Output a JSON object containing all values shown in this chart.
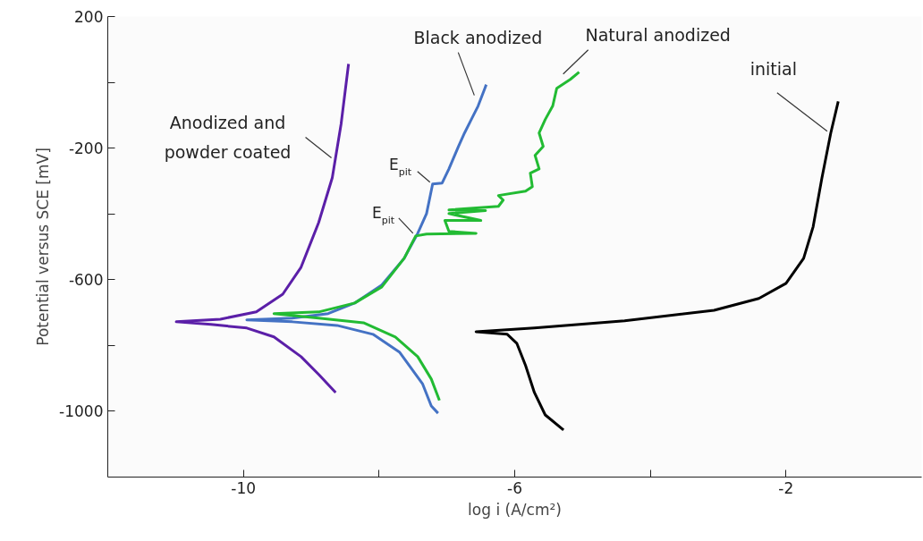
{
  "chart_data": {
    "type": "line",
    "xlabel": "log i (A/cm²)",
    "ylabel": "Potential versus SCE [mV]",
    "xlim": [
      -12,
      0
    ],
    "ylim": [
      -1200,
      200
    ],
    "xticks": [
      -10,
      {
        "value": -8,
        "label": null
      },
      -6,
      {
        "value": -4,
        "label": null
      },
      -2
    ],
    "yticks": [
      200,
      {
        "value": 0,
        "label": null
      },
      -200,
      {
        "value": -400,
        "label": null
      },
      -600,
      {
        "value": -800,
        "label": null
      },
      -1000
    ],
    "grid": false,
    "marker": "none",
    "line_style": "solid",
    "series": [
      {
        "color": "#5b1fa8",
        "x": [
          -8.45,
          -8.56,
          -8.69,
          -8.89,
          -9.15,
          -9.42,
          -9.81,
          -10.34,
          -10.99,
          -10.48,
          -9.95,
          -9.55,
          -9.15,
          -8.89,
          -8.64
        ],
        "values": [
          56,
          -127,
          -290,
          -426,
          -562,
          -644,
          -698,
          -720,
          -728,
          -736,
          -747,
          -774,
          -834,
          -888,
          -943
        ]
      },
      {
        "color": "#4472c4",
        "x": [
          -6.42,
          -6.44,
          -6.54,
          -6.64,
          -6.74,
          -6.83,
          -6.97,
          -7.07,
          -7.21,
          -7.3,
          -7.43,
          -7.63,
          -7.96,
          -8.36,
          -8.75,
          -9.28,
          -9.95,
          -9.28,
          -8.62,
          -8.09,
          -7.7,
          -7.36,
          -7.23,
          -7.13
        ],
        "values": [
          -7,
          -18,
          -72,
          -113,
          -154,
          -195,
          -263,
          -306,
          -309,
          -399,
          -459,
          -535,
          -616,
          -671,
          -703,
          -717,
          -722,
          -728,
          -739,
          -766,
          -820,
          -916,
          -984,
          -1006
        ]
      },
      {
        "color": "#22bb33",
        "x": [
          -5.05,
          -5.18,
          -5.38,
          -5.44,
          -5.55,
          -5.64,
          -5.58,
          -5.7,
          -5.64,
          -5.77,
          -5.74,
          -5.84,
          -6.24,
          -6.17,
          -6.24,
          -6.97,
          -6.43,
          -6.97,
          -6.5,
          -7.03,
          -6.97,
          -6.57,
          -7.3,
          -7.46,
          -7.63,
          -7.96,
          -8.36,
          -8.89,
          -9.55,
          -8.89,
          -8.23,
          -7.76,
          -7.43,
          -7.23,
          -7.11
        ],
        "values": [
          31,
          9,
          -18,
          -72,
          -113,
          -154,
          -195,
          -222,
          -263,
          -276,
          -317,
          -331,
          -344,
          -358,
          -377,
          -388,
          -390,
          -399,
          -420,
          -420,
          -453,
          -459,
          -461,
          -467,
          -535,
          -622,
          -671,
          -698,
          -703,
          -717,
          -731,
          -774,
          -834,
          -902,
          -967
        ]
      },
      {
        "color": "#000000",
        "x": [
          -1.23,
          -1.34,
          -1.47,
          -1.6,
          -1.74,
          -2.0,
          -2.4,
          -3.06,
          -4.38,
          -5.71,
          -6.57,
          -6.11,
          -5.97,
          -5.84,
          -5.71,
          -5.55,
          -5.28
        ],
        "values": [
          -58,
          -154,
          -290,
          -439,
          -535,
          -611,
          -657,
          -693,
          -725,
          -747,
          -758,
          -766,
          -793,
          -861,
          -943,
          -1011,
          -1057
        ]
      }
    ],
    "annotations": [
      {
        "text": "Anodized and\npowder coated",
        "x": -8.65,
        "y": -235
      },
      {
        "text": "Black anodized",
        "x": -6.49,
        "y": -45
      },
      {
        "text": "Natural anodized",
        "x": -5.18,
        "y": 9
      },
      {
        "text": "initial",
        "x": -1.34,
        "y": -154
      },
      {
        "text": "E$_{pit}$",
        "x": -7.21,
        "y": -309
      },
      {
        "text": "E$_{pit}$",
        "x": -7.46,
        "y": -467
      }
    ]
  }
}
